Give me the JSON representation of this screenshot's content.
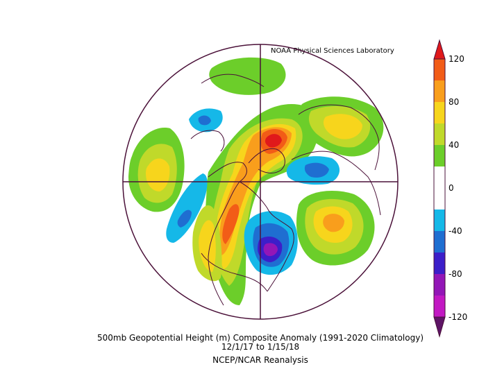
{
  "credit": "NOAA Physical Sciences Laboratory",
  "caption": {
    "line1": "500mb Geopotential Height (m) Composite Anomaly (1991-2020 Climatology)",
    "line2": "12/1/17   to 1/15/18",
    "line3": "NCEP/NCAR Reanalysis"
  },
  "colorbar": {
    "ticks": [
      "120",
      "80",
      "40",
      "0",
      "-40",
      "-80",
      "-120"
    ],
    "colors": {
      "above_120": "#e0191b",
      "100_120": "#f25c17",
      "80_100": "#f99e1c",
      "60_80": "#f7d51c",
      "40_60": "#c0d92a",
      "20_40": "#6cce2a",
      "neg20_20": "#ffffff",
      "neg40_neg20": "#15b8e8",
      "neg60_neg40": "#1f6ed1",
      "neg80_neg60": "#3c1ec9",
      "neg100_neg80": "#9316b7",
      "neg120_neg100": "#c218c3",
      "below_neg120": "#5e1466"
    }
  },
  "colors": {
    "outline": "#4a1038"
  }
}
